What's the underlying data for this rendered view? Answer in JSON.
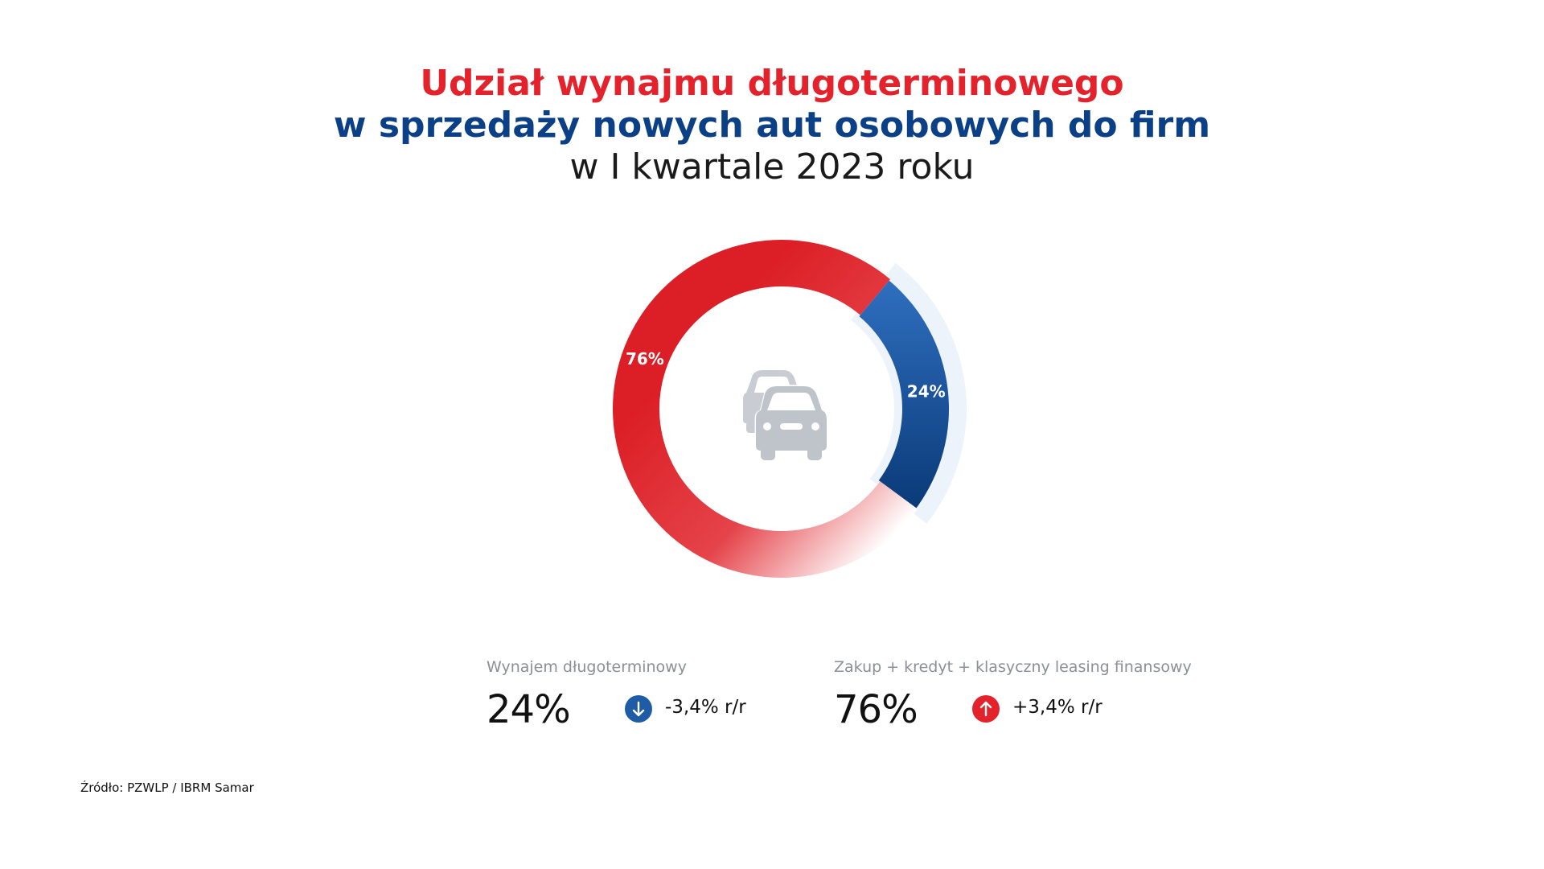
{
  "title": {
    "line1": "Udział wynajmu długoterminowego",
    "line2": "w sprzedaży nowych aut osobowych do firm",
    "line3": "w I kwartale 2023 roku"
  },
  "colors": {
    "red": "#dc1f26",
    "blue_light": "#2f6fbf",
    "blue_dark": "#0a3a78",
    "arrow_blue": "#1f5ca6",
    "arrow_red": "#e3222c",
    "icon_gray": "#c4c8cf"
  },
  "icon": "cars-icon",
  "chart_data": {
    "type": "pie",
    "variant": "donut",
    "slices": [
      {
        "label": "Wynajem długoterminowy",
        "value": 24,
        "display": "24%",
        "color": "#1f5ca6"
      },
      {
        "label": "Zakup + kredyt + klasyczny leasing finansowy",
        "value": 76,
        "display": "76%",
        "color": "#dc1f26"
      }
    ]
  },
  "legend": [
    {
      "label": "Wynajem długoterminowy",
      "value": "24%",
      "change": "-3,4% r/r",
      "direction": "down",
      "icon": "arrow-down-icon"
    },
    {
      "label": "Zakup + kredyt + klasyczny leasing finansowy",
      "value": "76%",
      "change": "+3,4% r/r",
      "direction": "up",
      "icon": "arrow-up-icon"
    }
  ],
  "source": "Źródło: PZWLP / IBRM Samar"
}
